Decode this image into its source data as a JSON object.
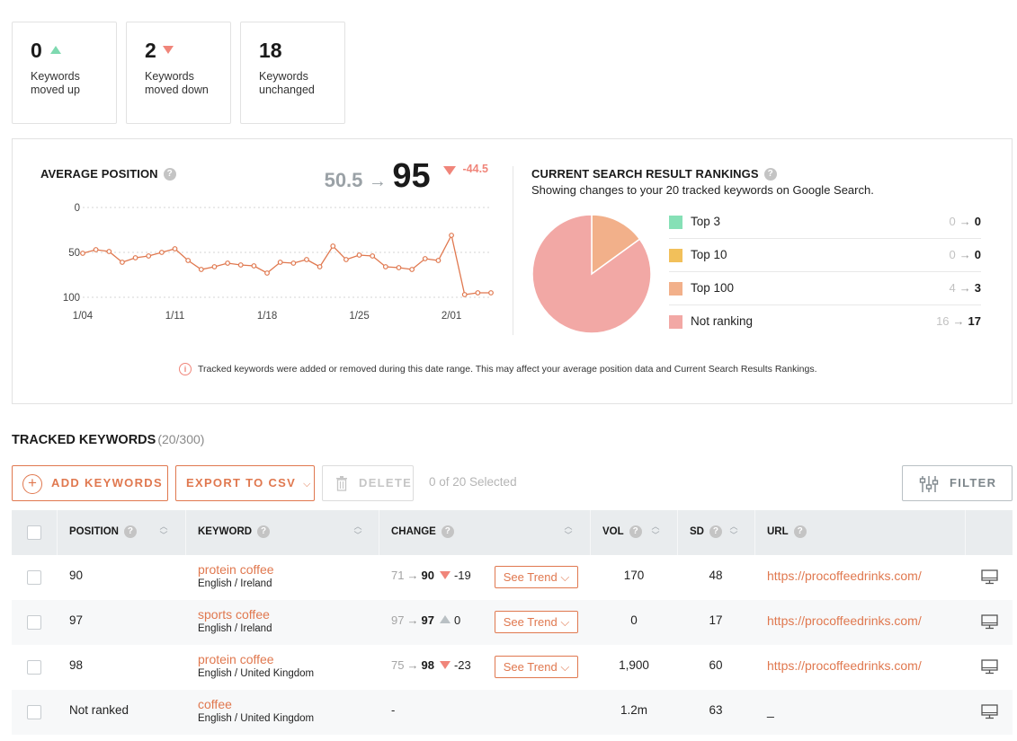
{
  "summary": [
    {
      "value": "0",
      "label": "Keywords moved up",
      "direction": "up"
    },
    {
      "value": "2",
      "label": "Keywords moved down",
      "direction": "down"
    },
    {
      "value": "18",
      "label": "Keywords unchanged",
      "direction": "none"
    }
  ],
  "average_position": {
    "title": "AVERAGE POSITION",
    "help_icon": "?",
    "from": "50.5",
    "arrow": "→",
    "to": "95",
    "delta": "-44.5"
  },
  "rankings": {
    "title": "CURRENT SEARCH RESULT RANKINGS",
    "help_icon": "?",
    "subtitle": "Showing changes to your 20 tracked keywords on Google Search.",
    "rows": [
      {
        "label": "Top 3",
        "old": "0",
        "new": "0",
        "color": "#86e0b6"
      },
      {
        "label": "Top 10",
        "old": "0",
        "new": "0",
        "color": "#f2c05a"
      },
      {
        "label": "Top 100",
        "old": "4",
        "new": "3",
        "color": "#f2b08a"
      },
      {
        "label": "Not ranking",
        "old": "16",
        "new": "17",
        "color": "#f2a8a5"
      }
    ],
    "arrow": "→"
  },
  "notice": {
    "icon": "i",
    "text": "Tracked keywords were added or removed during this date range. This may affect your average position data and Current Search Results Rankings."
  },
  "tracked": {
    "title": "TRACKED KEYWORDS",
    "count": "(20/300)",
    "add_label": "ADD KEYWORDS",
    "export_label": "EXPORT TO CSV",
    "delete_label": "DELETE",
    "selected_text": "0 of 20 Selected",
    "filter_label": "FILTER"
  },
  "table": {
    "headers": {
      "position": "POSITION",
      "keyword": "KEYWORD",
      "change": "CHANGE",
      "vol": "VOL",
      "sd": "SD",
      "url": "URL"
    },
    "help_icon": "?",
    "trend_label": "See Trend",
    "rows": [
      {
        "position": "90",
        "keyword": "protein coffee",
        "location": "English / Ireland",
        "old": "71",
        "new": "90",
        "delta": "-19",
        "vol": "170",
        "sd": "48",
        "url": "https://procoffeedrinks.com/"
      },
      {
        "position": "97",
        "keyword": "sports coffee",
        "location": "English / Ireland",
        "old": "97",
        "new": "97",
        "delta": "0",
        "vol": "0",
        "sd": "17",
        "url": "https://procoffeedrinks.com/"
      },
      {
        "position": "98",
        "keyword": "protein coffee",
        "location": "English / United Kingdom",
        "old": "75",
        "new": "98",
        "delta": "-23",
        "vol": "1,900",
        "sd": "60",
        "url": "https://procoffeedrinks.com/"
      },
      {
        "position": "Not ranked",
        "keyword": "coffee",
        "location": "English / United Kingdom",
        "change_text": "-",
        "vol": "1.2m",
        "sd": "63",
        "url": "_"
      }
    ]
  },
  "chart_data": [
    {
      "type": "line",
      "title": "AVERAGE POSITION",
      "x_ticks": [
        "1/04",
        "1/11",
        "1/18",
        "1/25",
        "2/01"
      ],
      "y_ticks": [
        0,
        50,
        100
      ],
      "ylim": [
        0,
        100
      ],
      "y_inverted": true,
      "grid": true,
      "color": "#e0784f",
      "x": [
        "1/04",
        "1/05",
        "1/06",
        "1/07",
        "1/08",
        "1/09",
        "1/10",
        "1/11",
        "1/12",
        "1/13",
        "1/14",
        "1/15",
        "1/16",
        "1/17",
        "1/18",
        "1/19",
        "1/20",
        "1/21",
        "1/22",
        "1/23",
        "1/24",
        "1/25",
        "1/26",
        "1/27",
        "1/28",
        "1/29",
        "1/30",
        "1/31",
        "2/01",
        "2/02",
        "2/03",
        "2/04"
      ],
      "values": [
        51,
        47,
        49,
        61,
        56,
        54,
        50,
        46,
        59,
        69,
        66,
        62,
        64,
        65,
        73,
        61,
        62,
        58,
        66,
        43,
        58,
        53,
        54,
        66,
        67,
        69,
        57,
        59,
        31,
        97,
        95,
        95
      ]
    },
    {
      "type": "pie",
      "title": "CURRENT SEARCH RESULT RANKINGS",
      "categories": [
        "Top 3",
        "Top 10",
        "Top 100",
        "Not ranking"
      ],
      "values": [
        0,
        0,
        3,
        17
      ]
    }
  ]
}
